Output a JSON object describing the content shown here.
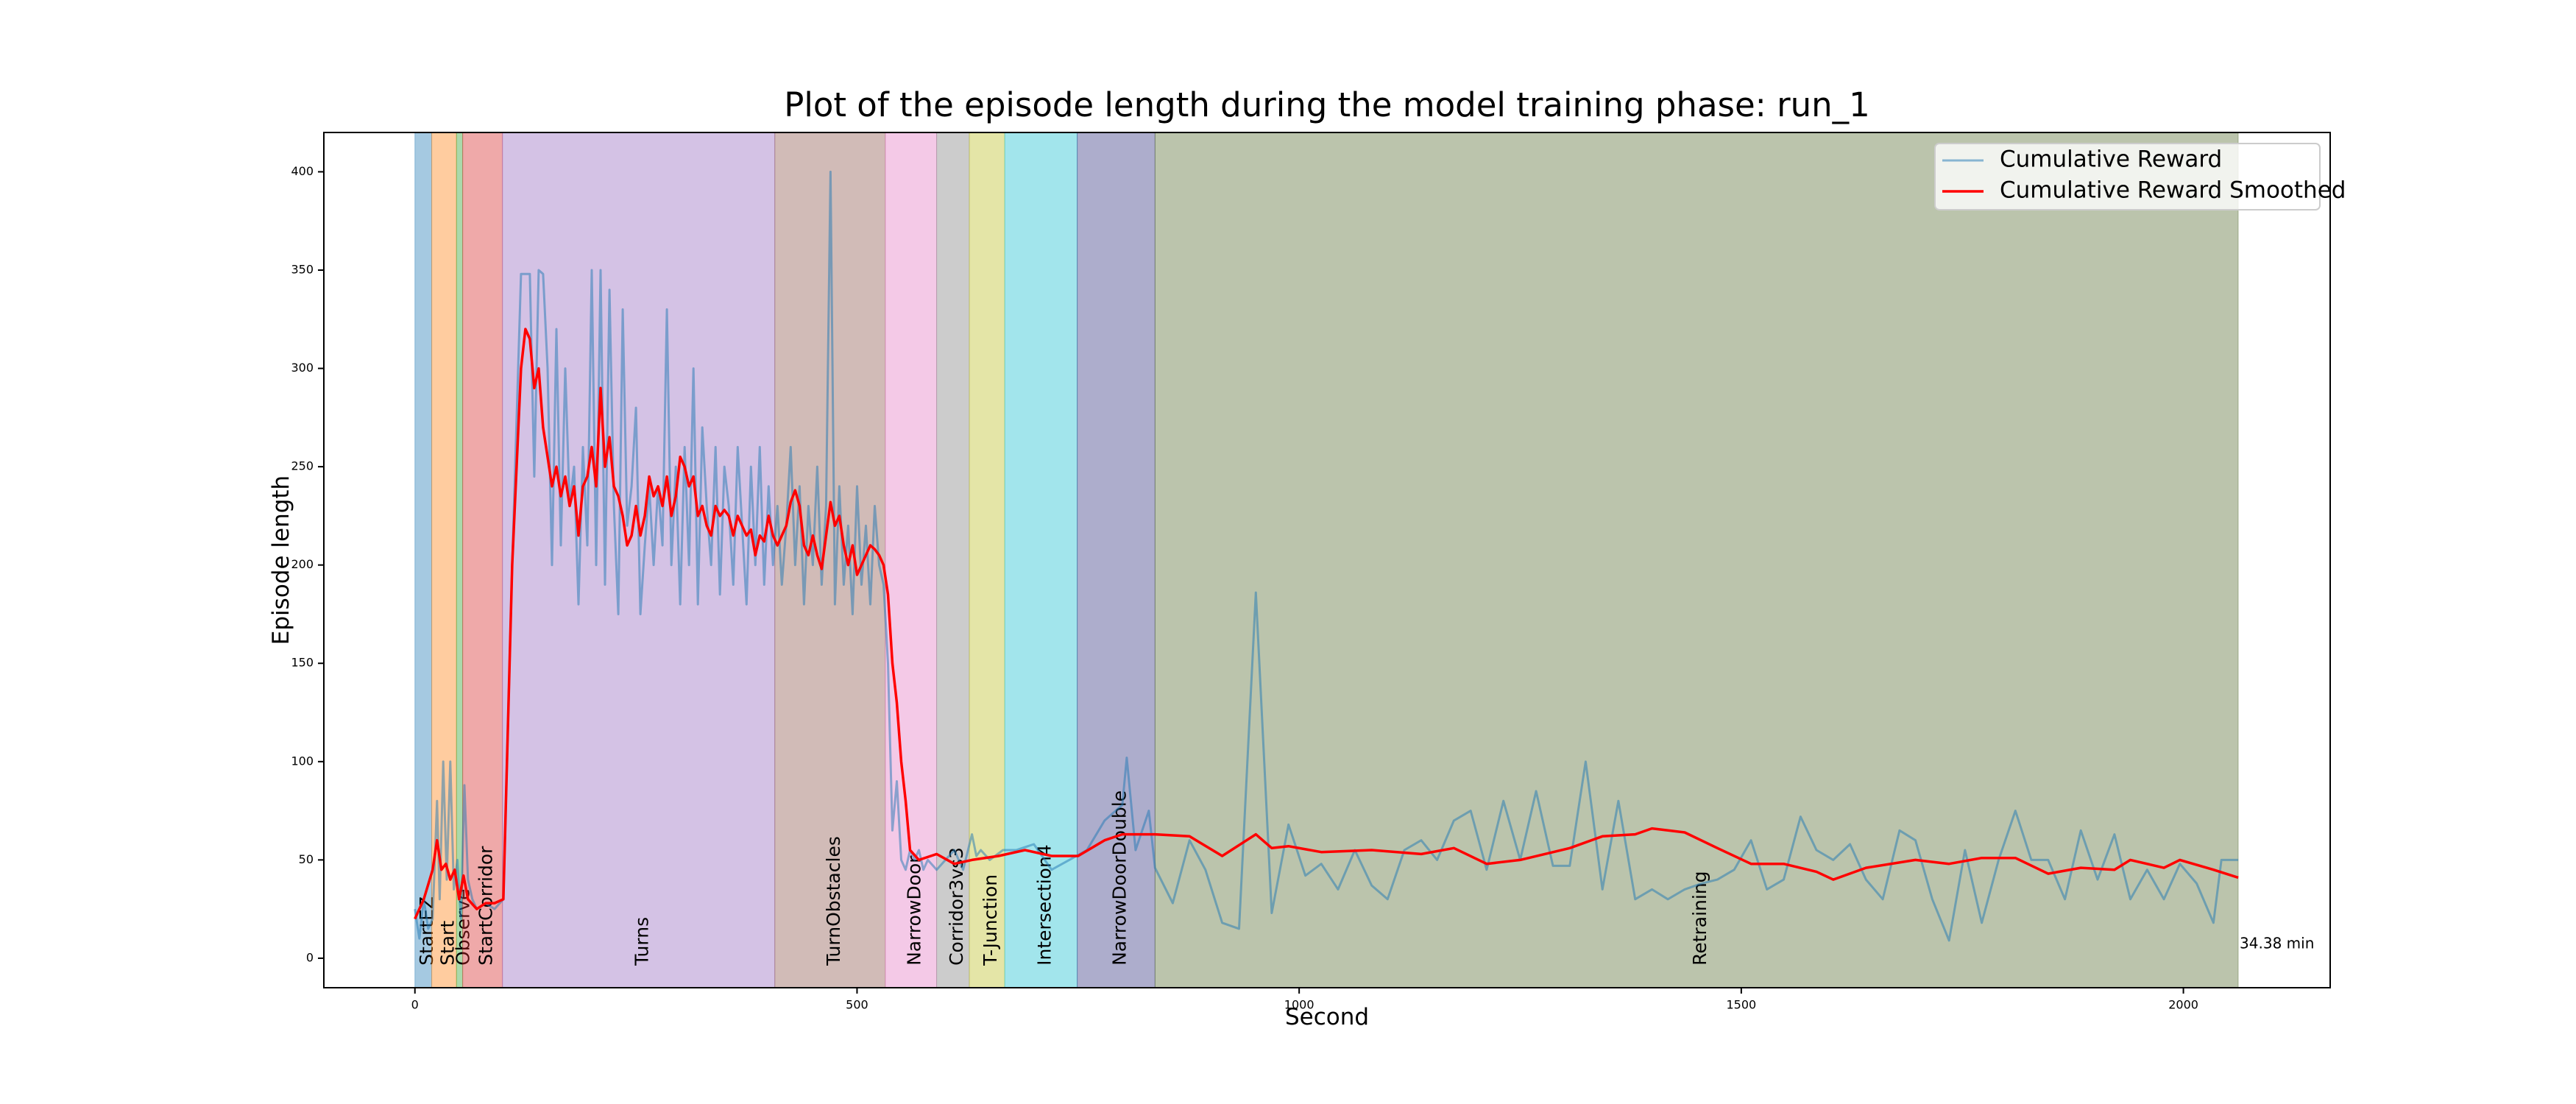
{
  "chart_data": {
    "type": "line",
    "title": "Plot of the episode length during the model training phase: run_1",
    "x_label": "Second",
    "y_label": "Episode length",
    "xlim": [
      -103,
      2166
    ],
    "ylim": [
      -15,
      420
    ],
    "xticks": [
      0,
      500,
      1000,
      1500,
      2000
    ],
    "yticks": [
      0,
      50,
      100,
      150,
      200,
      250,
      300,
      350,
      400
    ],
    "grid": false,
    "legend": "upper right",
    "phases": [
      {
        "label": "StartEZ",
        "start": 0,
        "end": 19,
        "color": "#1f77b4"
      },
      {
        "label": "Start",
        "start": 19,
        "end": 47,
        "color": "#ff7f0e"
      },
      {
        "label": "Observe",
        "start": 47,
        "end": 54,
        "color": "#2ca02c"
      },
      {
        "label": "StartCorridor",
        "start": 54,
        "end": 99,
        "color": "#d62728"
      },
      {
        "label": "Turns",
        "start": 99,
        "end": 407,
        "color": "#9467bd"
      },
      {
        "label": "TurnObstacles",
        "start": 407,
        "end": 532,
        "color": "#8c564b"
      },
      {
        "label": "NarrowDoor",
        "start": 532,
        "end": 590,
        "color": "#e377c2"
      },
      {
        "label": "Corridor3vs3",
        "start": 590,
        "end": 627,
        "color": "#7f7f7f"
      },
      {
        "label": "T-Junction",
        "start": 627,
        "end": 667,
        "color": "#bcbd22"
      },
      {
        "label": "Intersection4",
        "start": 667,
        "end": 749,
        "color": "#17becf"
      },
      {
        "label": "NarrowDoorDouble",
        "start": 749,
        "end": 837,
        "color": "#33337f"
      },
      {
        "label": "Retraining",
        "start": 837,
        "end": 2062,
        "color": "#556b2f"
      }
    ],
    "annotation": {
      "text": "34.38 min",
      "x": 2062,
      "y": 7
    },
    "series": [
      {
        "name": "Cumulative Reward",
        "color": "#1f77b4",
        "x": [
          0,
          5,
          10,
          15,
          20,
          25,
          28,
          32,
          36,
          40,
          44,
          48,
          52,
          56,
          60,
          65,
          70,
          80,
          90,
          100,
          110,
          120,
          130,
          135,
          140,
          145,
          150,
          155,
          160,
          165,
          170,
          175,
          180,
          185,
          190,
          195,
          200,
          205,
          210,
          215,
          220,
          225,
          230,
          235,
          240,
          245,
          250,
          255,
          260,
          265,
          270,
          275,
          280,
          285,
          290,
          295,
          300,
          305,
          310,
          315,
          320,
          325,
          330,
          335,
          340,
          345,
          350,
          355,
          360,
          365,
          370,
          375,
          380,
          385,
          390,
          395,
          400,
          405,
          410,
          415,
          420,
          425,
          430,
          435,
          440,
          445,
          450,
          455,
          460,
          465,
          470,
          475,
          480,
          485,
          490,
          495,
          500,
          505,
          510,
          515,
          520,
          525,
          530,
          535,
          540,
          545,
          550,
          555,
          560,
          565,
          570,
          575,
          580,
          590,
          600,
          610,
          620,
          630,
          635,
          640,
          650,
          665,
          680,
          700,
          720,
          740,
          760,
          780,
          800,
          805,
          815,
          830,
          837,
          857,
          876,
          894,
          913,
          932,
          951,
          969,
          988,
          1007,
          1025,
          1044,
          1063,
          1082,
          1100,
          1119,
          1138,
          1156,
          1175,
          1194,
          1212,
          1231,
          1250,
          1268,
          1287,
          1306,
          1324,
          1343,
          1361,
          1380,
          1399,
          1417,
          1436,
          1455,
          1473,
          1492,
          1511,
          1529,
          1548,
          1567,
          1585,
          1604,
          1623,
          1641,
          1660,
          1679,
          1697,
          1716,
          1735,
          1753,
          1772,
          1791,
          1810,
          1828,
          1847,
          1866,
          1884,
          1903,
          1922,
          1940,
          1959,
          1978,
          1996,
          2015,
          2034,
          2043,
          2062
        ],
        "values": [
          25,
          10,
          30,
          15,
          20,
          80,
          30,
          100,
          40,
          100,
          35,
          50,
          20,
          88,
          40,
          30,
          25,
          28,
          25,
          30,
          200,
          348,
          348,
          245,
          350,
          348,
          300,
          200,
          320,
          210,
          300,
          230,
          250,
          180,
          260,
          210,
          350,
          200,
          350,
          190,
          340,
          230,
          175,
          330,
          220,
          240,
          280,
          175,
          210,
          240,
          200,
          240,
          210,
          330,
          200,
          250,
          180,
          260,
          200,
          300,
          180,
          270,
          230,
          200,
          260,
          185,
          250,
          230,
          190,
          260,
          220,
          180,
          250,
          200,
          260,
          190,
          240,
          200,
          230,
          190,
          220,
          260,
          200,
          240,
          180,
          230,
          200,
          250,
          190,
          230,
          400,
          180,
          240,
          190,
          220,
          175,
          240,
          190,
          220,
          180,
          230,
          200,
          190,
          150,
          65,
          90,
          50,
          45,
          55,
          50,
          55,
          45,
          50,
          45,
          50,
          55,
          45,
          63,
          52,
          55,
          50,
          55,
          55,
          58,
          45,
          50,
          55,
          70,
          78,
          102,
          55,
          75,
          46,
          28,
          60,
          45,
          18,
          15,
          186,
          23,
          68,
          42,
          48,
          35,
          55,
          37,
          30,
          55,
          60,
          50,
          70,
          75,
          45,
          80,
          50,
          85,
          47,
          47,
          100,
          35,
          80,
          30,
          35,
          30,
          35,
          38,
          40,
          45,
          60,
          35,
          40,
          72,
          55,
          50,
          58,
          40,
          30,
          65,
          60,
          30,
          9,
          55,
          18,
          50,
          75,
          50,
          50,
          30,
          65,
          40,
          63,
          30,
          45,
          30,
          48,
          38,
          18,
          50,
          50
        ]
      },
      {
        "name": "Cumulative Reward Smoothed",
        "color": "#ff0000",
        "x": [
          0,
          10,
          20,
          25,
          30,
          35,
          40,
          45,
          50,
          55,
          60,
          70,
          80,
          90,
          100,
          110,
          120,
          125,
          130,
          135,
          140,
          145,
          150,
          155,
          160,
          165,
          170,
          175,
          180,
          185,
          190,
          195,
          200,
          205,
          210,
          215,
          220,
          225,
          230,
          235,
          240,
          245,
          250,
          255,
          260,
          265,
          270,
          275,
          280,
          285,
          290,
          295,
          300,
          305,
          310,
          315,
          320,
          325,
          330,
          335,
          340,
          345,
          350,
          355,
          360,
          365,
          370,
          375,
          380,
          385,
          390,
          395,
          400,
          405,
          410,
          415,
          420,
          425,
          430,
          435,
          440,
          445,
          450,
          455,
          460,
          465,
          470,
          475,
          480,
          485,
          490,
          495,
          500,
          505,
          510,
          515,
          520,
          525,
          530,
          535,
          540,
          545,
          550,
          555,
          560,
          570,
          590,
          610,
          630,
          660,
          690,
          720,
          750,
          780,
          800,
          837,
          876,
          913,
          951,
          969,
          988,
          1025,
          1082,
          1138,
          1175,
          1212,
          1250,
          1306,
          1343,
          1380,
          1399,
          1436,
          1473,
          1511,
          1548,
          1585,
          1604,
          1641,
          1697,
          1735,
          1772,
          1810,
          1847,
          1884,
          1922,
          1940,
          1978,
          1996,
          2034,
          2062
        ],
        "values": [
          20,
          30,
          45,
          60,
          45,
          48,
          40,
          45,
          30,
          42,
          30,
          25,
          28,
          28,
          30,
          200,
          300,
          320,
          315,
          290,
          300,
          270,
          255,
          240,
          250,
          235,
          245,
          230,
          240,
          215,
          240,
          245,
          260,
          240,
          290,
          250,
          265,
          240,
          235,
          225,
          210,
          215,
          230,
          215,
          225,
          245,
          235,
          240,
          230,
          245,
          225,
          235,
          255,
          250,
          240,
          245,
          225,
          230,
          220,
          215,
          230,
          225,
          228,
          225,
          215,
          225,
          220,
          215,
          218,
          205,
          215,
          212,
          225,
          215,
          210,
          215,
          220,
          232,
          238,
          230,
          210,
          205,
          215,
          205,
          198,
          215,
          232,
          220,
          225,
          210,
          200,
          210,
          195,
          200,
          205,
          210,
          208,
          205,
          200,
          185,
          150,
          130,
          100,
          80,
          55,
          50,
          53,
          48,
          50,
          52,
          55,
          52,
          52,
          60,
          63,
          63,
          62,
          52,
          63,
          56,
          57,
          54,
          55,
          53,
          56,
          48,
          50,
          56,
          62,
          63,
          66,
          64,
          56,
          48,
          48,
          44,
          40,
          46,
          50,
          48,
          51,
          51,
          43,
          46,
          45,
          50,
          46,
          50,
          45,
          41
        ]
      }
    ]
  }
}
